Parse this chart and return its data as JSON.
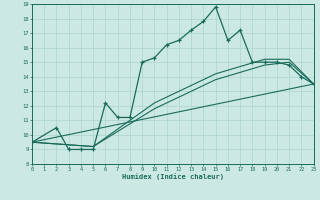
{
  "bg_color": "#cce8e3",
  "grid_color": "#aad4cc",
  "line_color": "#1a6b5a",
  "xlabel": "Humidex (Indice chaleur)",
  "xlim": [
    0,
    23
  ],
  "ylim": [
    8,
    19
  ],
  "yticks": [
    8,
    9,
    10,
    11,
    12,
    13,
    14,
    15,
    16,
    17,
    18,
    19
  ],
  "xticks": [
    0,
    1,
    2,
    3,
    4,
    5,
    6,
    7,
    8,
    9,
    10,
    11,
    12,
    13,
    14,
    15,
    16,
    17,
    18,
    19,
    20,
    21,
    22,
    23
  ],
  "line1_x": [
    0,
    2,
    3,
    4,
    5,
    6,
    7,
    8,
    9,
    10,
    11,
    12,
    13,
    14,
    15,
    16,
    17,
    18,
    19,
    20,
    21,
    22,
    23
  ],
  "line1_y": [
    9.5,
    10.5,
    9.0,
    9.0,
    9.0,
    12.2,
    11.2,
    11.2,
    15.0,
    15.3,
    16.2,
    16.5,
    17.2,
    17.8,
    18.8,
    16.5,
    17.2,
    15.0,
    15.0,
    15.0,
    14.8,
    14.0,
    13.5
  ],
  "line2_x": [
    0,
    23
  ],
  "line2_y": [
    9.5,
    13.5
  ],
  "line3_x": [
    0,
    5,
    10,
    15,
    19,
    21,
    23
  ],
  "line3_y": [
    9.5,
    9.2,
    11.8,
    13.8,
    14.8,
    15.0,
    13.5
  ],
  "line4_x": [
    0,
    5,
    10,
    15,
    19,
    21,
    23
  ],
  "line4_y": [
    9.5,
    9.2,
    12.2,
    14.2,
    15.2,
    15.2,
    13.5
  ]
}
